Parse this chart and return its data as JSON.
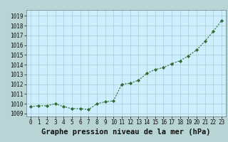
{
  "x": [
    0,
    1,
    2,
    3,
    4,
    5,
    6,
    7,
    8,
    9,
    10,
    11,
    12,
    13,
    14,
    15,
    16,
    17,
    18,
    19,
    20,
    21,
    22,
    23
  ],
  "y": [
    1009.7,
    1009.8,
    1009.8,
    1010.0,
    1009.7,
    1009.5,
    1009.5,
    1009.4,
    1010.0,
    1010.2,
    1010.3,
    1012.0,
    1012.1,
    1012.4,
    1013.1,
    1013.5,
    1013.7,
    1014.1,
    1014.4,
    1014.9,
    1015.5,
    1016.4,
    1017.4,
    1018.5
  ],
  "line_color": "#2d6a2d",
  "marker_color": "#2d6a2d",
  "bg_color": "#cceeff",
  "grid_color": "#aacccc",
  "title": "Graphe pression niveau de la mer (hPa)",
  "xlabel_tick_labels": [
    "0",
    "1",
    "2",
    "3",
    "4",
    "5",
    "6",
    "7",
    "8",
    "9",
    "10",
    "11",
    "12",
    "13",
    "14",
    "15",
    "16",
    "17",
    "18",
    "19",
    "20",
    "21",
    "22",
    "23"
  ],
  "yticks": [
    1009,
    1010,
    1011,
    1012,
    1013,
    1014,
    1015,
    1016,
    1017,
    1018,
    1019
  ],
  "ylim": [
    1008.7,
    1019.6
  ],
  "xlim": [
    -0.5,
    23.5
  ],
  "title_fontsize": 7.5,
  "tick_fontsize": 5.5,
  "outer_bg": "#b8d4d4"
}
